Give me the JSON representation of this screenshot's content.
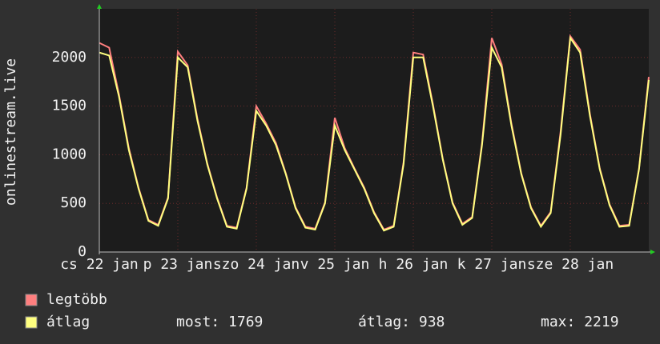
{
  "chart_data": {
    "type": "line",
    "y_label": "onlinestream.live",
    "x": [
      0,
      0.125,
      0.25,
      0.375,
      0.5,
      0.625,
      0.75,
      0.875,
      1,
      1.125,
      1.25,
      1.375,
      1.5,
      1.625,
      1.75,
      1.875,
      2,
      2.125,
      2.25,
      2.375,
      2.5,
      2.625,
      2.75,
      2.875,
      3,
      3.125,
      3.25,
      3.375,
      3.5,
      3.625,
      3.75,
      3.875,
      4,
      4.125,
      4.25,
      4.375,
      4.5,
      4.625,
      4.75,
      4.875,
      5,
      5.125,
      5.25,
      5.375,
      5.5,
      5.625,
      5.75,
      5.875,
      6,
      6.125,
      6.25,
      6.375,
      6.5,
      6.625,
      6.75,
      6.875,
      7
    ],
    "series": [
      {
        "name": "legtöbb",
        "color": "#ff7f7f",
        "values": [
          2150,
          2100,
          1620,
          1070,
          660,
          330,
          280,
          560,
          2060,
          1920,
          1370,
          910,
          560,
          270,
          250,
          660,
          1500,
          1320,
          1120,
          810,
          460,
          260,
          240,
          510,
          1380,
          1070,
          860,
          660,
          410,
          230,
          270,
          920,
          2050,
          2030,
          1520,
          960,
          510,
          290,
          360,
          1120,
          2200,
          1930,
          1320,
          810,
          460,
          270,
          410,
          1230,
          2219,
          2080,
          1420,
          860,
          490,
          270,
          280,
          860,
          1800
        ]
      },
      {
        "name": "átlag",
        "color": "#ffff7f",
        "values": [
          2050,
          2020,
          1600,
          1050,
          650,
          320,
          270,
          550,
          2000,
          1900,
          1350,
          900,
          550,
          260,
          240,
          650,
          1450,
          1300,
          1100,
          800,
          450,
          250,
          230,
          500,
          1300,
          1050,
          850,
          650,
          400,
          220,
          260,
          900,
          2000,
          2000,
          1500,
          950,
          500,
          280,
          350,
          1100,
          2100,
          1900,
          1300,
          800,
          450,
          260,
          400,
          1200,
          2200,
          2050,
          1400,
          850,
          480,
          260,
          270,
          850,
          1769
        ]
      }
    ],
    "xlim": [
      0,
      7
    ],
    "xticks": [
      {
        "value": 0,
        "label": "cs 22 jan"
      },
      {
        "value": 1,
        "label": "p 23 jan"
      },
      {
        "value": 2,
        "label": "szo 24 jan"
      },
      {
        "value": 3,
        "label": "v 25 jan"
      },
      {
        "value": 4,
        "label": "h 26 jan"
      },
      {
        "value": 5,
        "label": "k 27 jan"
      },
      {
        "value": 6,
        "label": "sze 28 jan"
      }
    ],
    "ylim": [
      0,
      2500
    ],
    "yticks": [
      0,
      500,
      1000,
      1500,
      2000
    ],
    "grid": true,
    "stats": [
      {
        "label": "most:",
        "value": 1769
      },
      {
        "label": "átlag:",
        "value": 938
      },
      {
        "label": "max:",
        "value": 2219
      }
    ]
  }
}
